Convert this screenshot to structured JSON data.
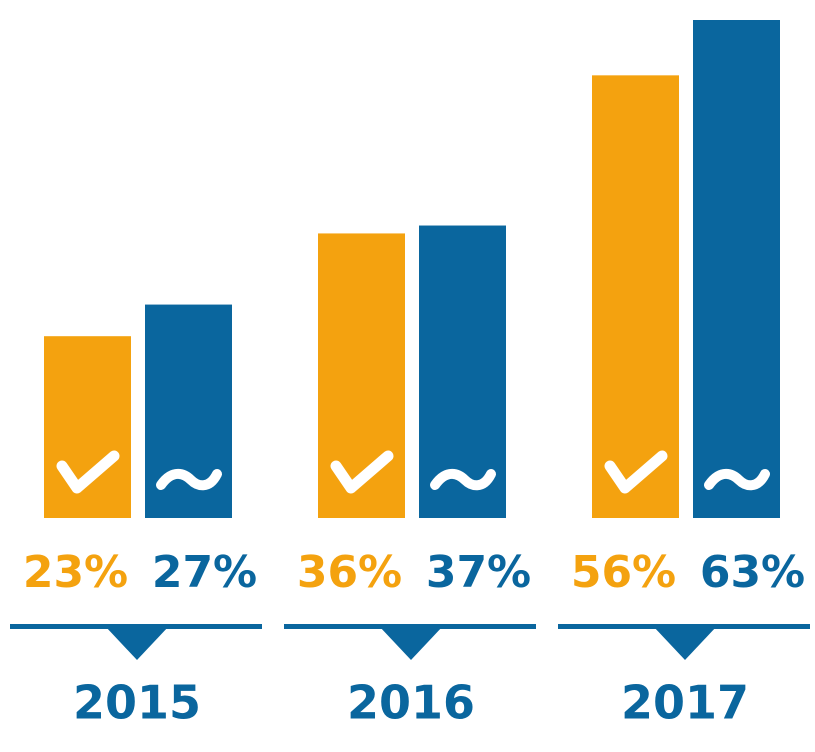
{
  "chart_data": {
    "type": "bar",
    "categories": [
      "2015",
      "2016",
      "2017"
    ],
    "series": [
      {
        "color": "#f4a20f",
        "values": [
          23,
          36,
          56
        ],
        "value_labels": [
          "23%",
          "36%",
          "56%"
        ]
      },
      {
        "color": "#0a669e",
        "values": [
          27,
          37,
          63
        ],
        "value_labels": [
          "27%",
          "37%",
          "63%"
        ]
      }
    ]
  }
}
